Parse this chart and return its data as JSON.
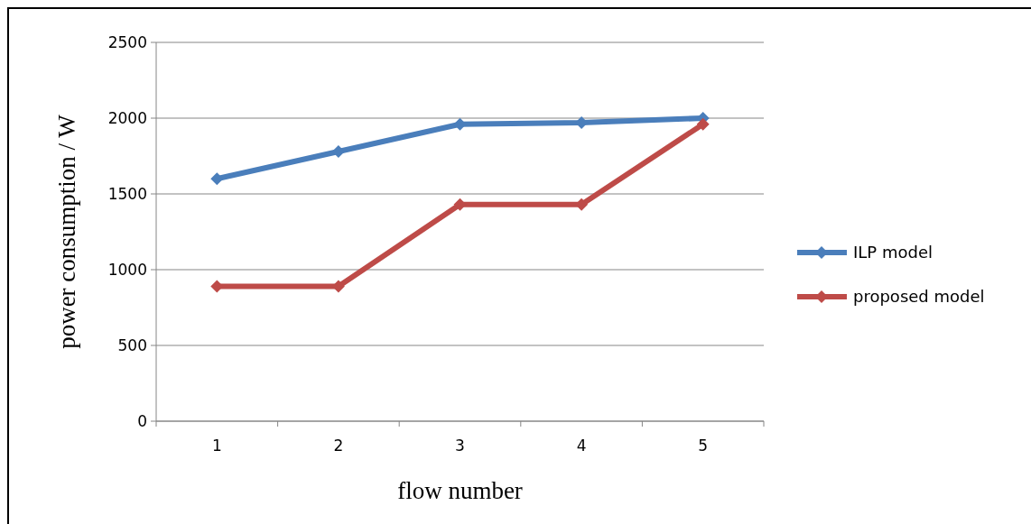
{
  "chart_data": {
    "type": "line",
    "xlabel": "flow number",
    "ylabel": "power consumption / W",
    "categories": [
      "1",
      "2",
      "3",
      "4",
      "5"
    ],
    "series": [
      {
        "name": "ILP model",
        "color": "#4a7ebb",
        "values": [
          1600,
          1780,
          1960,
          1970,
          2000
        ]
      },
      {
        "name": "proposed model",
        "color": "#be4b48",
        "values": [
          890,
          890,
          1430,
          1430,
          1960
        ]
      }
    ],
    "ylim": [
      0,
      2500
    ],
    "yticks": [
      0,
      500,
      1000,
      1500,
      2000,
      2500
    ],
    "grid": "y",
    "legend": "right",
    "marker": "diamond",
    "line_style": "solid"
  }
}
